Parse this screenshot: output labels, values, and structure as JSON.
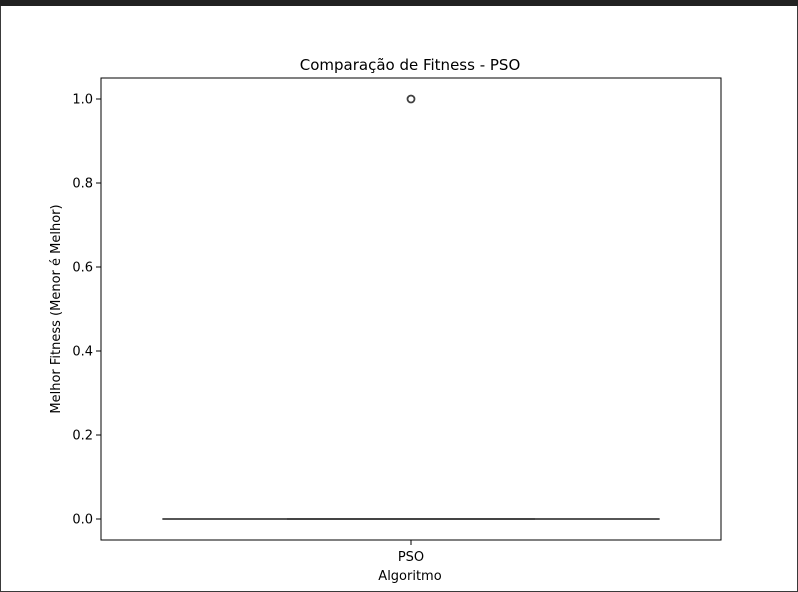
{
  "chart_data": {
    "type": "box",
    "title": "Comparação de Fitness - PSO",
    "xlabel": "Algoritmo",
    "ylabel": "Melhor Fitness (Menor é Melhor)",
    "categories": [
      "PSO"
    ],
    "ylim": [
      -0.05,
      1.05
    ],
    "yticks": [
      0.0,
      0.2,
      0.4,
      0.6,
      0.8,
      1.0
    ],
    "ytick_labels": [
      "0.0",
      "0.2",
      "0.4",
      "0.6",
      "0.8",
      "1.0"
    ],
    "boxes": [
      {
        "category": "PSO",
        "whisker_low": 0.0,
        "q1": 0.0,
        "median": 0.0,
        "q3": 0.0,
        "whisker_high": 0.0,
        "outliers": [
          1.0
        ]
      }
    ],
    "grid": false,
    "legend": "none",
    "colors": {
      "box_line": "#3f3f3f",
      "outlier": "#3f3f3f",
      "axes": "#000000"
    }
  }
}
